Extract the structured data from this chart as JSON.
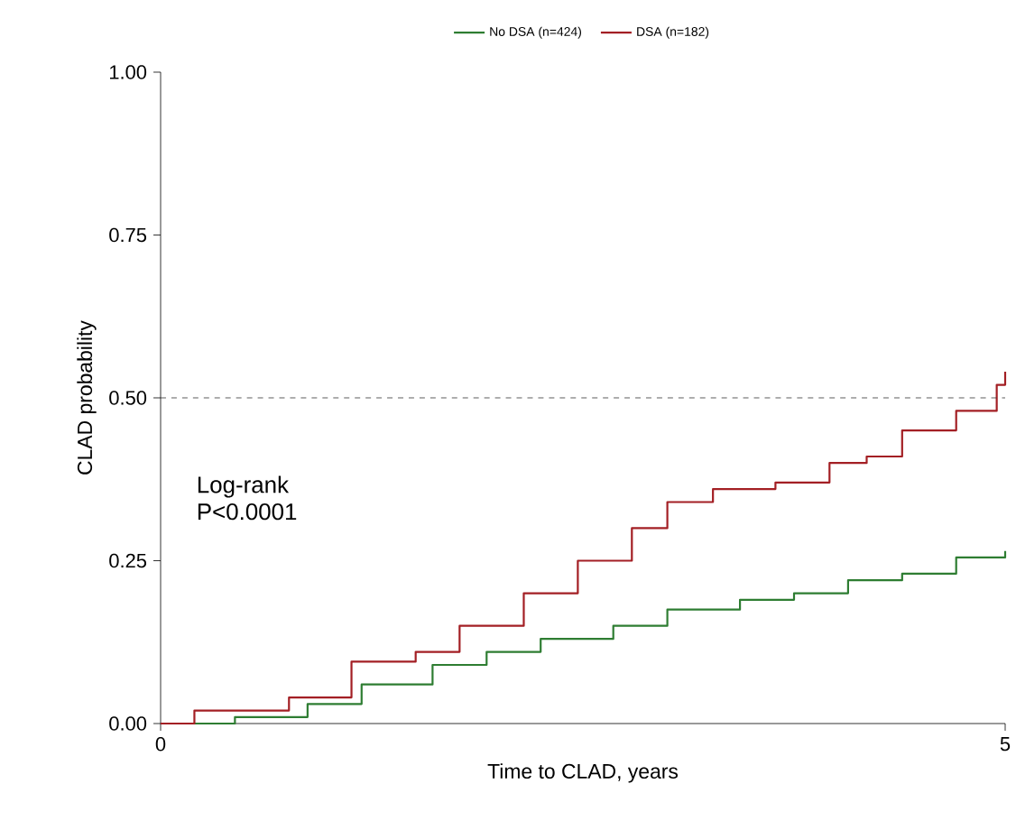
{
  "chart_data": {
    "type": "step",
    "xlabel": "Time to CLAD, years",
    "ylabel": "CLAD probability",
    "xlim": [
      0,
      5
    ],
    "ylim": [
      0,
      1
    ],
    "xticks": [
      0,
      5
    ],
    "yticks": [
      {
        "value": 0,
        "label": "0.00"
      },
      {
        "value": 0.25,
        "label": "0.25"
      },
      {
        "value": 0.5,
        "label": "0.50"
      },
      {
        "value": 0.75,
        "label": "0.75"
      },
      {
        "value": 1,
        "label": "1.00"
      }
    ],
    "legend": "top",
    "grid": false,
    "ref_lines": [
      {
        "axis": "y",
        "value": 0.5,
        "color": "#333333",
        "line_style": "dashed"
      }
    ],
    "annotations": [
      "Log-rank",
      "P<0.0001"
    ],
    "series": [
      {
        "name": "No DSA (n=424)",
        "color": "#2e7d32",
        "x": [
          0,
          0.44,
          0.87,
          1.19,
          1.61,
          1.93,
          2.25,
          2.68,
          3.0,
          3.43,
          3.75,
          4.07,
          4.39,
          4.71,
          5.0
        ],
        "values": [
          0,
          0.01,
          0.03,
          0.06,
          0.09,
          0.11,
          0.13,
          0.15,
          0.175,
          0.19,
          0.2,
          0.22,
          0.23,
          0.255,
          0.265
        ]
      },
      {
        "name": "DSA (n=182)",
        "color": "#a31f24",
        "x": [
          0,
          0.2,
          0.44,
          0.76,
          1.13,
          1.51,
          1.77,
          2.15,
          2.47,
          2.79,
          3.0,
          3.27,
          3.64,
          3.96,
          4.18,
          4.39,
          4.71,
          4.87,
          4.95,
          5.0
        ],
        "values": [
          0,
          0.02,
          0.02,
          0.04,
          0.095,
          0.11,
          0.15,
          0.2,
          0.25,
          0.3,
          0.34,
          0.36,
          0.37,
          0.4,
          0.41,
          0.45,
          0.48,
          0.48,
          0.52,
          0.54
        ]
      }
    ]
  }
}
